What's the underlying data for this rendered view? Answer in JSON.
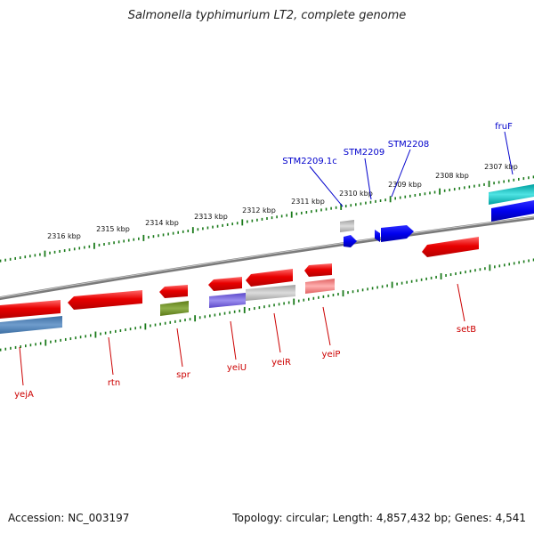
{
  "title": "Salmonella typhimurium LT2, complete genome",
  "footer": {
    "accession": "Accession: NC_003197",
    "summary": "Topology: circular; Length: 4,857,432 bp; Genes: 4,541"
  },
  "colors": {
    "backbone": "#7a7a7a",
    "tick": "#1a7a1a",
    "forward_gene": "#e60000",
    "feature_label": "#cc0000",
    "top_label": "#0000cc"
  },
  "scale_labels": [
    "2316 kbp",
    "2315 kbp",
    "2314 kbp",
    "2313 kbp",
    "2312 kbp",
    "2311 kbp",
    "2310 kbp",
    "2309 kbp",
    "2308 kbp",
    "2307 kbp"
  ],
  "genes_bottom_labels": [
    "yejA",
    "rtn",
    "spr",
    "yeiU",
    "yeiR",
    "yeiP",
    "setB"
  ],
  "genes_top_labels": [
    "STM2209.1c",
    "STM2209",
    "STM2208",
    "fruF"
  ]
}
